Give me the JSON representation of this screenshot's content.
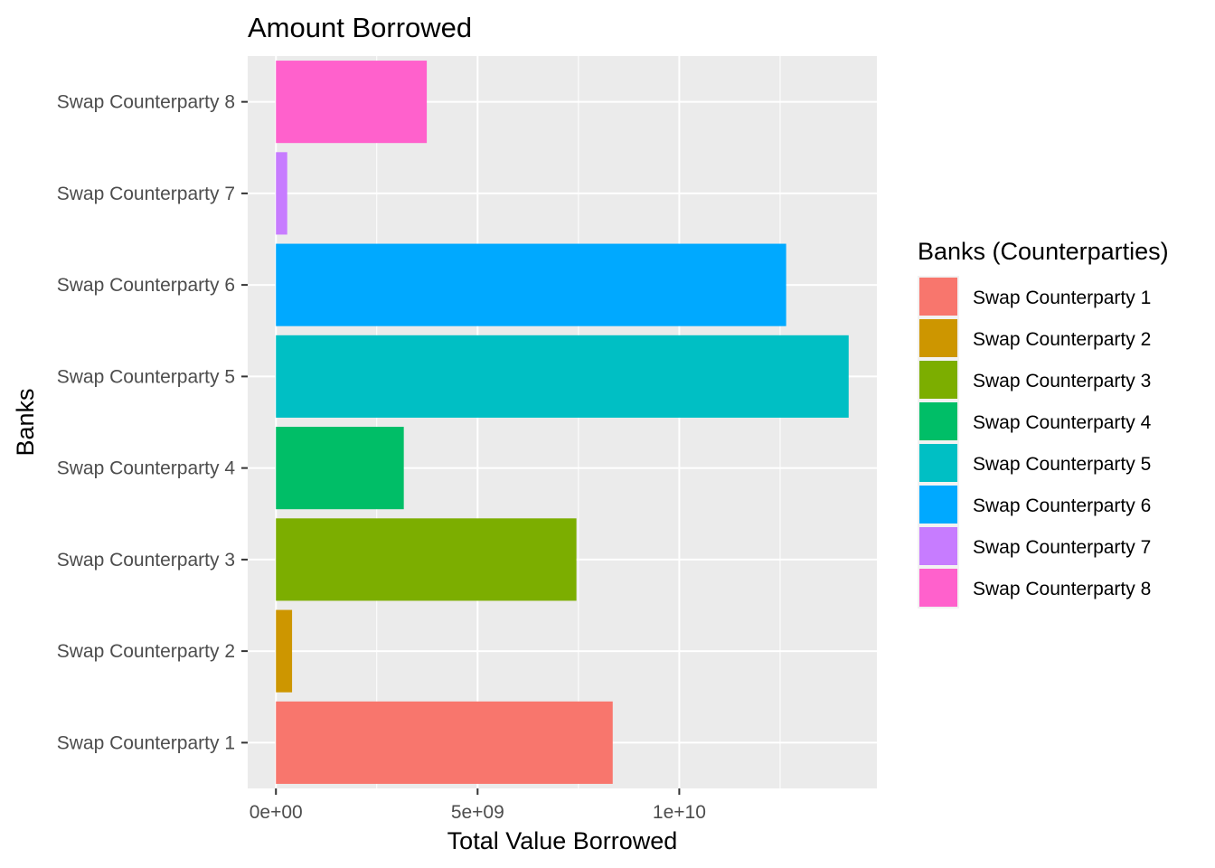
{
  "chart_data": {
    "type": "bar",
    "orientation": "horizontal",
    "title": "Amount Borrowed",
    "xlabel": "Total Value Borrowed",
    "ylabel": "Banks",
    "categories": [
      "Swap Counterparty 1",
      "Swap Counterparty 2",
      "Swap Counterparty 3",
      "Swap Counterparty 4",
      "Swap Counterparty 5",
      "Swap Counterparty 6",
      "Swap Counterparty 7",
      "Swap Counterparty 8"
    ],
    "values": [
      8350000000,
      400000000,
      7450000000,
      3170000000,
      14200000000,
      12650000000,
      280000000,
      3740000000
    ],
    "colors": [
      "#F8766D",
      "#CD9600",
      "#7CAE00",
      "#00BE67",
      "#00BFC4",
      "#00A9FF",
      "#C77CFF",
      "#FF61CC"
    ],
    "xlim": [
      -700000000,
      14900000000
    ],
    "x_ticks": [
      0,
      5000000000,
      10000000000
    ],
    "x_tick_labels": [
      "0e+00",
      "5e+09",
      "1e+10"
    ],
    "grid": true,
    "panel_background": "#EBEBEB",
    "legend": {
      "title": "Banks (Counterparties)",
      "position": "right"
    }
  }
}
